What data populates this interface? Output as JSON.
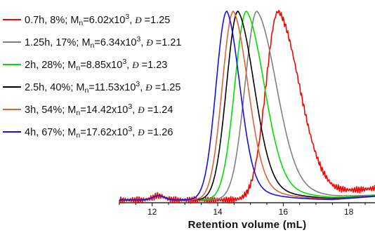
{
  "chart_data": {
    "type": "line",
    "xlabel": "Retention volume (mL)",
    "xlim": [
      11.0,
      18.8
    ],
    "xticks": [
      12,
      14,
      16,
      18
    ],
    "x_tick_labels": [
      "12",
      "14",
      "16",
      "18"
    ],
    "grid": false,
    "legend_position": "top-left",
    "series": [
      {
        "name": "0.7h, 8%; Mn=6.02x10^3, Đ=1.25",
        "time": "0.7h",
        "conversion": "8%",
        "mn_mantissa": "6.02",
        "dispersity": "1.25",
        "color": "#ff0000",
        "peak_x": 15.85
      },
      {
        "name": "1.25h, 17%; Mn=6.34x10^3, Đ=1.21",
        "time": "1.25h",
        "conversion": "17%",
        "mn_mantissa": "6.34",
        "dispersity": "1.21",
        "color": "#808080",
        "peak_x": 15.2
      },
      {
        "name": "2h, 28%; Mn=8.85x10^3, Đ=1.23",
        "time": "2h",
        "conversion": "28%",
        "mn_mantissa": "8.85",
        "dispersity": "1.23",
        "color": "#00e000",
        "peak_x": 14.88
      },
      {
        "name": "2.5h, 40%; Mn=11.53x10^3, Đ=1.25",
        "time": "2.5h",
        "conversion": "40%",
        "mn_mantissa": "11.53",
        "dispersity": "1.25",
        "color": "#000000",
        "peak_x": 14.62
      },
      {
        "name": "3h, 54%; Mn=14.42x10^3, Đ=1.24",
        "time": "3h",
        "conversion": "54%",
        "mn_mantissa": "14.42",
        "dispersity": "1.24",
        "color": "#e0603a",
        "peak_x": 14.48
      },
      {
        "name": "4h, 67%; Mn=17.62x10^3, Đ=1.26",
        "time": "4h",
        "conversion": "67%",
        "mn_mantissa": "17.62",
        "dispersity": "1.26",
        "color": "#1010f0",
        "peak_x": 14.28
      }
    ]
  }
}
